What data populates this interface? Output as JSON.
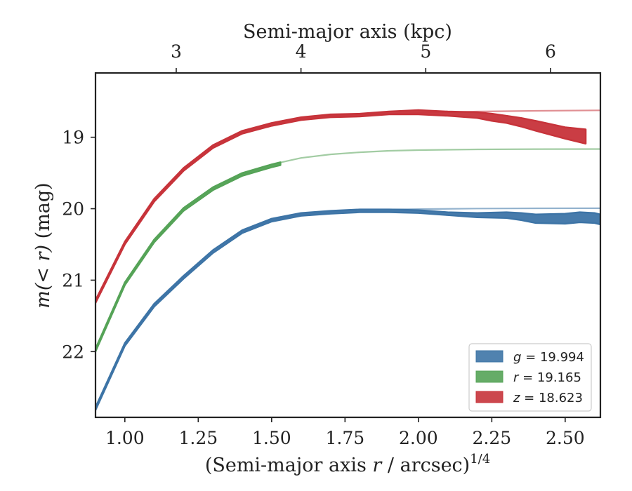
{
  "chart_data": {
    "type": "line",
    "title": "",
    "xlabel_top": "Semi-major axis (kpc)",
    "xlabel_bottom_prefix": "(Semi-major axis ",
    "xlabel_bottom_var": "r",
    "xlabel_bottom_suffix": " / arcsec)",
    "xlabel_bottom_exp": "1/4",
    "ylabel_math": "m(< r)",
    "ylabel_unit": "(mag)",
    "xlim": [
      0.9,
      2.62
    ],
    "ylim": [
      22.92,
      18.1
    ],
    "y_inverted": true,
    "x_ticks": [
      "1.00",
      "1.25",
      "1.50",
      "1.75",
      "2.00",
      "2.25",
      "2.50"
    ],
    "x_tick_values": [
      1.0,
      1.25,
      1.5,
      1.75,
      2.0,
      2.25,
      2.5
    ],
    "y_ticks": [
      "19",
      "20",
      "21",
      "22"
    ],
    "y_tick_values": [
      19,
      20,
      21,
      22
    ],
    "top_x_ticks": [
      "3",
      "4",
      "5",
      "6"
    ],
    "top_x_tick_positions": [
      1.175,
      1.6,
      2.025,
      2.45
    ],
    "legend_position": "lower-right",
    "series": [
      {
        "name": "g = 19.994",
        "var": "g",
        "value": "19.994",
        "color": "#3d74a6",
        "model_x": [
          0.9,
          1.0,
          1.1,
          1.2,
          1.3,
          1.4,
          1.5,
          1.6,
          1.7,
          1.8,
          1.9,
          2.0,
          2.2,
          2.4,
          2.62
        ],
        "model_y": [
          22.78,
          21.88,
          21.35,
          20.95,
          20.58,
          20.32,
          20.16,
          20.08,
          20.04,
          20.02,
          20.01,
          20.005,
          19.998,
          19.995,
          19.994
        ],
        "x": [
          0.9,
          1.0,
          1.1,
          1.2,
          1.3,
          1.4,
          1.5,
          1.6,
          1.7,
          1.8,
          1.9,
          2.0,
          2.1,
          2.2,
          2.3,
          2.35,
          2.4,
          2.5,
          2.55,
          2.6,
          2.62
        ],
        "y": [
          22.8,
          21.9,
          21.35,
          20.96,
          20.6,
          20.32,
          20.16,
          20.08,
          20.05,
          20.03,
          20.03,
          20.04,
          20.07,
          20.09,
          20.09,
          20.11,
          20.14,
          20.14,
          20.12,
          20.13,
          20.15
        ],
        "err": [
          0.02,
          0.02,
          0.02,
          0.02,
          0.02,
          0.02,
          0.02,
          0.02,
          0.02,
          0.02,
          0.02,
          0.02,
          0.02,
          0.03,
          0.04,
          0.05,
          0.06,
          0.07,
          0.07,
          0.07,
          0.07
        ]
      },
      {
        "name": "r = 19.165",
        "var": "r",
        "value": "19.165",
        "color": "#55a357",
        "model_x": [
          0.9,
          1.0,
          1.1,
          1.2,
          1.3,
          1.4,
          1.5,
          1.6,
          1.7,
          1.8,
          1.9,
          2.0,
          2.2,
          2.4,
          2.62
        ],
        "model_y": [
          21.98,
          21.05,
          20.45,
          20.0,
          19.72,
          19.52,
          19.38,
          19.29,
          19.24,
          19.21,
          19.19,
          19.18,
          19.17,
          19.166,
          19.165
        ],
        "x": [
          0.9,
          1.0,
          1.1,
          1.2,
          1.3,
          1.4,
          1.5,
          1.53
        ],
        "y": [
          21.98,
          21.05,
          20.45,
          20.01,
          19.72,
          19.52,
          19.4,
          19.37
        ],
        "err": [
          0.02,
          0.02,
          0.02,
          0.02,
          0.02,
          0.02,
          0.02,
          0.02
        ]
      },
      {
        "name": "z = 18.623",
        "var": "z",
        "value": "18.623",
        "color": "#c7333a",
        "model_x": [
          0.9,
          1.0,
          1.1,
          1.2,
          1.3,
          1.4,
          1.5,
          1.6,
          1.7,
          1.8,
          1.9,
          2.0,
          2.2,
          2.4,
          2.62
        ],
        "model_y": [
          21.3,
          20.48,
          19.88,
          19.45,
          19.13,
          18.93,
          18.82,
          18.74,
          18.7,
          18.68,
          18.67,
          18.66,
          18.64,
          18.63,
          18.623
        ],
        "x": [
          0.9,
          1.0,
          1.1,
          1.2,
          1.3,
          1.4,
          1.5,
          1.6,
          1.7,
          1.8,
          1.9,
          2.0,
          2.1,
          2.2,
          2.25,
          2.3,
          2.35,
          2.4,
          2.5,
          2.57
        ],
        "y": [
          21.3,
          20.48,
          19.88,
          19.45,
          19.13,
          18.93,
          18.82,
          18.74,
          18.7,
          18.69,
          18.66,
          18.65,
          18.67,
          18.69,
          18.72,
          18.75,
          18.79,
          18.84,
          18.94,
          18.99
        ],
        "err": [
          0.02,
          0.02,
          0.02,
          0.02,
          0.02,
          0.02,
          0.02,
          0.02,
          0.02,
          0.02,
          0.02,
          0.03,
          0.03,
          0.04,
          0.05,
          0.05,
          0.06,
          0.07,
          0.08,
          0.1
        ]
      }
    ]
  }
}
